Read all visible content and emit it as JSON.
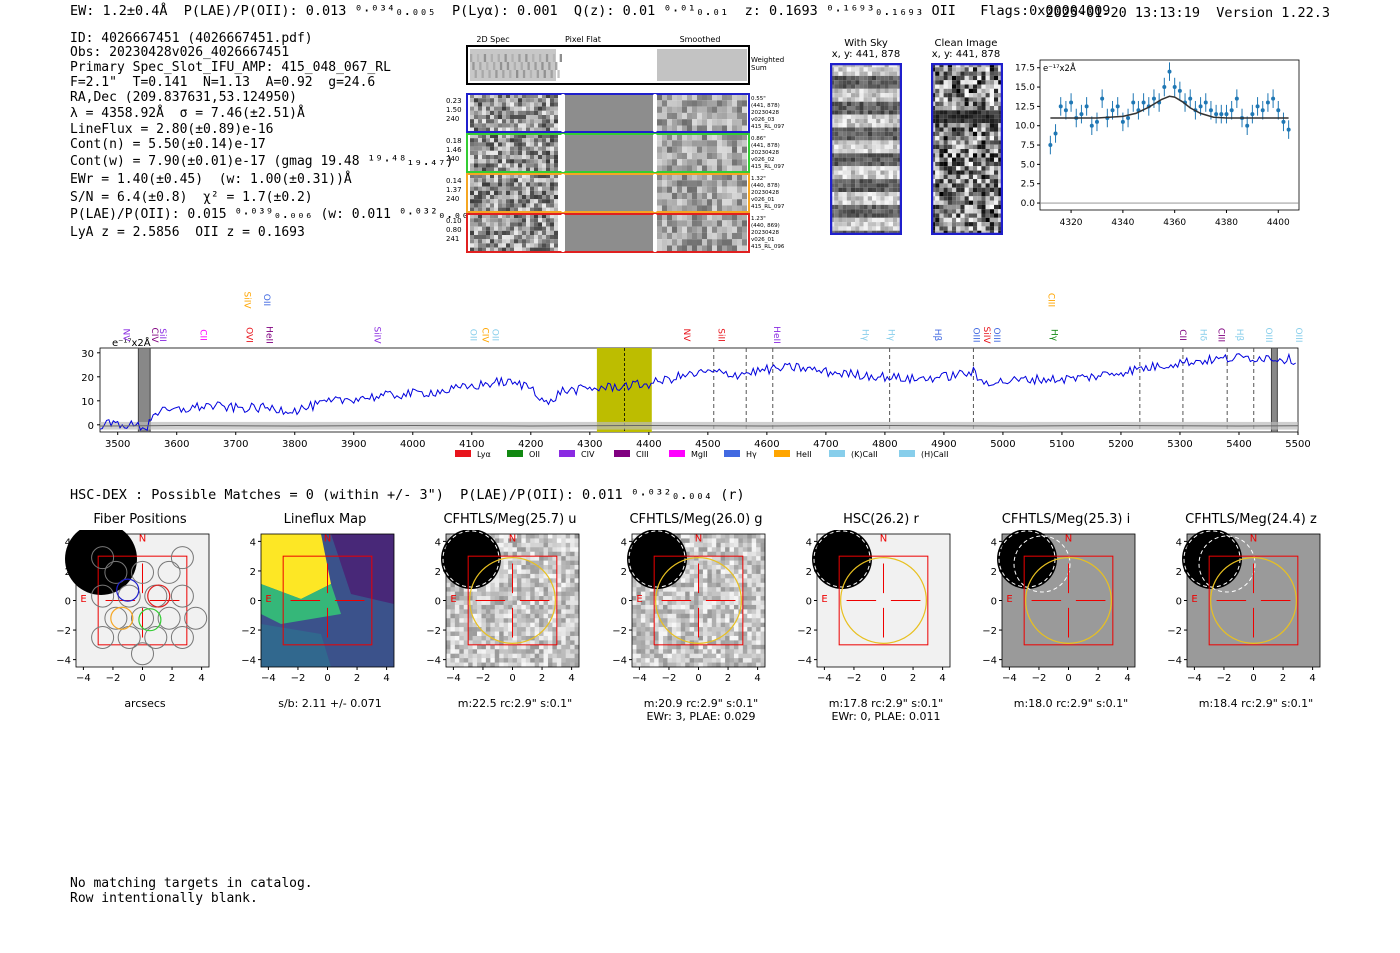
{
  "header": {
    "left": "EW: 1.2±0.4Å  P(LAE)/P(OII): 0.013 ⁰·⁰³⁴₀.₀₀₅  P(Lyα): 0.001  Q(z): 0.01 ⁰·⁰¹₀.₀₁  z: 0.1693 ⁰·¹⁶⁹³₀.₁₆₉₃ OII   Flags:0x00004009",
    "right": "2025-01-20 13:13:19  Version 1.22.3"
  },
  "info_lines": [
    "ID: 4026667451 (4026667451.pdf)",
    "Obs: 20230428v026_4026667451",
    "Primary Spec_Slot_IFU_AMP: 415_048_067_RL",
    "F=2.1\"  T=0.141  N=1.13  A=0.92  g=24.6",
    "RA,Dec (209.837631,53.124950)",
    "λ = 4358.92Å  σ = 7.46(±2.51)Å",
    "LineFlux = 2.80(±0.89)e-16",
    "Cont(n) = 5.50(±0.14)e-17",
    "Cont(w) = 7.90(±0.01)e-17 (gmag 19.48 ¹⁹·⁴⁸₁₉.₄₇)",
    "EWr = 1.40(±0.45)  (w: 1.00(±0.31))Å",
    "S/N = 6.4(±0.8)  χ² = 1.7(±0.2)",
    "P(LAE)/P(OII): 0.015 ⁰·⁰³⁹₀.₀₀₆ (w: 0.011 ⁰·⁰³²₀.₀₀₄)",
    "LyA z = 2.5856  OII z = 0.1693"
  ],
  "fiber_panel": {
    "column_titles": [
      "2D Spec",
      "Pixel Flat",
      "Smoothed"
    ],
    "weighted_label": "Weighted Sum",
    "fibers": [
      {
        "left": "0.23\n1.50\n240",
        "right": "0.55\"\n(441, 878)\n20230428\nv026_03\n415_RL_097",
        "color": "#1f1fcc"
      },
      {
        "left": "0.18\n1.46\n240",
        "right": "0.86\"\n(441, 878)\n20230428\nv026_02\n415_RL_097",
        "color": "#33cc33"
      },
      {
        "left": "0.14\n1.37\n240",
        "right": "1.32\"\n(440, 878)\n20230428\nv026_01\n415_RL_097",
        "color": "#f5a623"
      },
      {
        "left": "0.10\n0.80\n241",
        "right": "1.23\"\n(440, 869)\n20230428\nv026_01\n415_RL_096",
        "color": "#e02020"
      }
    ]
  },
  "sky_panels": [
    {
      "title": "With Sky",
      "sub": "x, y: 441, 878"
    },
    {
      "title": "Clean Image",
      "sub": "x, y: 441, 878"
    }
  ],
  "line_fit": {
    "unit_label": "e⁻¹⁷x2Å",
    "yticks": [
      "0.0",
      "2.5",
      "5.0",
      "7.5",
      "10.0",
      "12.5",
      "15.0",
      "17.5"
    ],
    "xticks": [
      "4320",
      "4340",
      "4360",
      "4380",
      "4400"
    ]
  },
  "spectrum": {
    "unit_label": "e⁻¹⁷x2Å",
    "yticks": [
      "0",
      "10",
      "20",
      "30"
    ],
    "xticks": [
      "3500",
      "3600",
      "3700",
      "3800",
      "3900",
      "4000",
      "4100",
      "4200",
      "4300",
      "4400",
      "4500",
      "4600",
      "4700",
      "4800",
      "4900",
      "5000",
      "5100",
      "5200",
      "5300",
      "5400",
      "5500"
    ],
    "legend": [
      {
        "label": "Lyα",
        "color": "#e8141c"
      },
      {
        "label": "OII",
        "color": "#118811"
      },
      {
        "label": "CIV",
        "color": "#8a2be2"
      },
      {
        "label": "CIII",
        "color": "#800080"
      },
      {
        "label": "MgII",
        "color": "#ff00ff"
      },
      {
        "label": "Hγ",
        "color": "#4169e1"
      },
      {
        "label": "HeII",
        "color": "#ffa500"
      },
      {
        "label": "(K)CaII",
        "color": "#87ceeb"
      },
      {
        "label": "(H)CaII",
        "color": "#87ceeb"
      }
    ],
    "line_labels": [
      {
        "text": "NV",
        "color": "#8a2be2",
        "wl": 3510
      },
      {
        "text": "CIV",
        "color": "#800080",
        "wl": 3558
      },
      {
        "text": "SiII",
        "color": "#8a2be2",
        "wl": 3572
      },
      {
        "text": "CII",
        "color": "#ff00ff",
        "wl": 3640
      },
      {
        "text": "SiIV",
        "color": "#ffa500",
        "wl": 3715
      },
      {
        "text": "OII",
        "color": "#4169e1",
        "wl": 3748
      },
      {
        "text": "OVI",
        "color": "#e8141c",
        "wl": 3718
      },
      {
        "text": "HeII",
        "color": "#800080",
        "wl": 3752
      },
      {
        "text": "SiIV",
        "color": "#8a2be2",
        "wl": 3935
      },
      {
        "text": "OII",
        "color": "#87ceeb",
        "wl": 4098
      },
      {
        "text": "CIV",
        "color": "#ffa500",
        "wl": 4118
      },
      {
        "text": "OII",
        "color": "#87ceeb",
        "wl": 4135
      },
      {
        "text": "NV",
        "color": "#e8141c",
        "wl": 4460
      },
      {
        "text": "SiII",
        "color": "#e8141c",
        "wl": 4518
      },
      {
        "text": "HeII",
        "color": "#8a2be2",
        "wl": 4612
      },
      {
        "text": "Hγ",
        "color": "#87ceeb",
        "wl": 4762
      },
      {
        "text": "Hγ",
        "color": "#87ceeb",
        "wl": 4806
      },
      {
        "text": "Hβ",
        "color": "#4169e1",
        "wl": 4885
      },
      {
        "text": "OIII",
        "color": "#4169e1",
        "wl": 4950
      },
      {
        "text": "SiIV",
        "color": "#e8141c",
        "wl": 4968
      },
      {
        "text": "OIII",
        "color": "#4169e1",
        "wl": 4985
      },
      {
        "text": "CIII",
        "color": "#ffa500",
        "wl": 5077
      },
      {
        "text": "Hγ",
        "color": "#118811",
        "wl": 5082
      },
      {
        "text": "CII",
        "color": "#800080",
        "wl": 5300
      },
      {
        "text": "Hδ",
        "color": "#87ceeb",
        "wl": 5335
      },
      {
        "text": "CIII",
        "color": "#800080",
        "wl": 5365
      },
      {
        "text": "Hβ",
        "color": "#87ceeb",
        "wl": 5397
      },
      {
        "text": "OIII",
        "color": "#87ceeb",
        "wl": 5446
      },
      {
        "text": "OIII",
        "color": "#87ceeb",
        "wl": 5497
      }
    ]
  },
  "chart_data": [
    {
      "type": "scatter",
      "title": "",
      "ylabel": "e⁻¹⁷x2Å",
      "xlim": [
        4308,
        4408
      ],
      "ylim": [
        -0.9,
        18.5
      ],
      "series": [
        {
          "kind": "points",
          "x": [
            4312,
            4314,
            4316,
            4318,
            4320,
            4322,
            4324,
            4326,
            4328,
            4330,
            4332,
            4334,
            4336,
            4338,
            4340,
            4342,
            4344,
            4346,
            4348,
            4350,
            4352,
            4354,
            4356,
            4358,
            4360,
            4362,
            4364,
            4366,
            4368,
            4370,
            4372,
            4374,
            4376,
            4378,
            4380,
            4382,
            4384,
            4386,
            4388,
            4390,
            4392,
            4394,
            4396,
            4398,
            4400,
            4402,
            4404
          ],
          "y": [
            7.5,
            9.0,
            12.5,
            12.0,
            13.0,
            11.0,
            11.5,
            12.5,
            10.0,
            10.5,
            13.5,
            11.0,
            12.0,
            12.5,
            10.5,
            11.0,
            13.0,
            12.0,
            13.0,
            12.5,
            13.5,
            13.0,
            15.0,
            17.0,
            15.0,
            14.5,
            13.0,
            13.5,
            12.0,
            12.5,
            13.0,
            12.0,
            11.5,
            11.5,
            11.5,
            12.0,
            13.5,
            11.0,
            10.0,
            11.5,
            12.5,
            12.0,
            13.0,
            13.5,
            12.0,
            10.5,
            9.5
          ],
          "err": 1.2
        },
        {
          "kind": "fit",
          "x": [
            4312,
            4320,
            4330,
            4340,
            4345,
            4350,
            4355,
            4358,
            4360,
            4363,
            4366,
            4370,
            4375,
            4380,
            4390,
            4400,
            4404
          ],
          "y": [
            11.0,
            11.0,
            11.0,
            11.2,
            11.6,
            12.4,
            13.4,
            13.8,
            13.7,
            13.1,
            12.3,
            11.6,
            11.1,
            11.0,
            11.0,
            11.0,
            11.0
          ]
        }
      ]
    },
    {
      "type": "line",
      "title": "",
      "ylabel": "e⁻¹⁷x2Å",
      "xlim": [
        3470,
        5500
      ],
      "ylim": [
        -3,
        32
      ],
      "highlight_band": [
        4312,
        4405
      ],
      "highlight_center": 4358.92,
      "masked_bands": [
        [
          3535,
          3555
        ],
        [
          5455,
          5465
        ]
      ],
      "dashed_lines": [
        4510,
        4565,
        4610,
        4808,
        4950,
        5232,
        5305,
        5380,
        5425
      ],
      "series": [
        {
          "name": "",
          "x": [
            3470,
            3500,
            3550,
            3560,
            3600,
            3650,
            3700,
            3750,
            3800,
            3850,
            3900,
            3950,
            4000,
            4050,
            4100,
            4150,
            4200,
            4230,
            4250,
            4300,
            4350,
            4400,
            4450,
            4500,
            4550,
            4600,
            4650,
            4700,
            4750,
            4800,
            4850,
            4900,
            4950,
            4960,
            5000,
            5050,
            5100,
            5150,
            5200,
            5250,
            5300,
            5350,
            5400,
            5450,
            5500
          ],
          "y": [
            0,
            0.5,
            -1,
            5,
            6,
            8,
            7,
            7,
            6,
            9,
            11,
            12,
            13,
            14,
            16,
            18,
            16,
            8,
            14,
            15,
            16,
            17,
            20,
            22,
            21,
            23,
            24,
            22,
            21,
            20,
            19,
            20,
            22,
            18,
            18,
            19,
            19,
            20,
            22,
            24,
            26,
            27,
            28,
            28,
            27
          ]
        },
        {
          "name": "",
          "x": [
            3470,
            3600,
            3800,
            4000,
            4200,
            4400,
            4600,
            4800,
            5000,
            5200,
            5400,
            5500
          ],
          "y": [
            -0.5,
            -0.3,
            -0.5,
            -0.3,
            -0.5,
            -0.3,
            -0.5,
            -0.3,
            -0.5,
            -0.3,
            -0.5,
            -0.4
          ]
        }
      ]
    }
  ],
  "hsc_line": "HSC-DEX : Possible Matches = 0 (within +/- 3\")  P(LAE)/P(OII): 0.011 ⁰·⁰³²₀.₀₀₄ (r)",
  "cutouts": [
    {
      "title": "Fiber Positions",
      "caption": "arcsecs",
      "caption2": "",
      "kind": "fiber"
    },
    {
      "title": "Lineflux Map",
      "caption": "s/b: 2.11 +/- 0.071",
      "caption2": "",
      "kind": "flux"
    },
    {
      "title": "CFHTLS/Meg(25.7) u",
      "caption": "m:22.5 rc:2.9\"  s:0.1\"",
      "caption2": "",
      "kind": "noise"
    },
    {
      "title": "CFHTLS/Meg(26.0) g",
      "caption": "m:20.9 rc:2.9\"  s:0.1\"",
      "caption2": "EWr: 3, PLAE: 0.029",
      "kind": "noise"
    },
    {
      "title": "HSC(26.2) r",
      "caption": "m:17.8 rc:2.9\"  s:0.1\"",
      "caption2": "EWr: 0, PLAE: 0.011",
      "kind": "smooth"
    },
    {
      "title": "CFHTLS/Meg(25.3) i",
      "caption": "m:18.0 rc:2.9\"  s:0.1\"",
      "caption2": "",
      "kind": "gray"
    },
    {
      "title": "CFHTLS/Meg(24.4) z",
      "caption": "m:18.4 rc:2.9\"  s:0.1\"",
      "caption2": "",
      "kind": "gray"
    }
  ],
  "cutout_axis": {
    "ticks": [
      "−4",
      "−2",
      "0",
      "2",
      "4"
    ],
    "marker_n": "N",
    "marker_e": "E"
  },
  "bottom_text": "No matching targets in catalog.\nRow intentionally blank."
}
